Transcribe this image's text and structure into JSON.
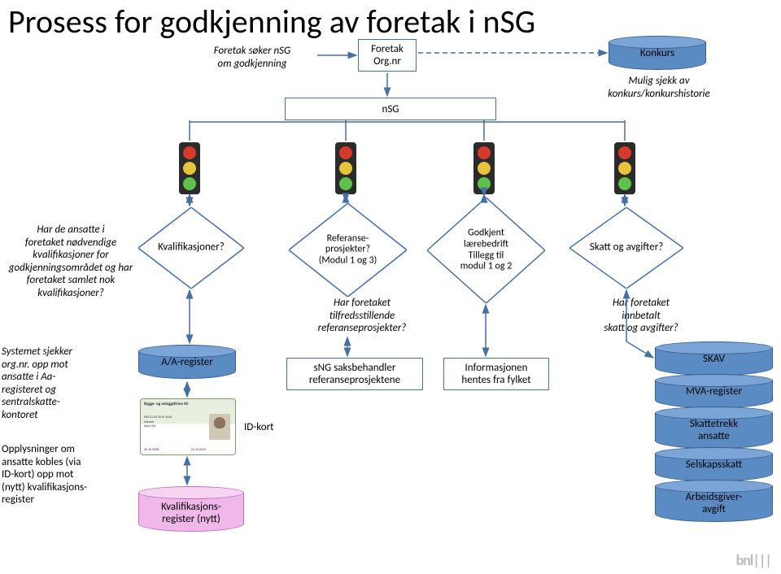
{
  "title": "Prosess for godkjenning av foretak i nSG",
  "top_labels": {
    "soker": "Foretak søker nSG\nom godkjenning",
    "mulig_sjekk": "Mulig sjekk av\nkonkurs/konkurshistorie"
  },
  "boxes": {
    "orgnr": "Foretak\nOrg.nr",
    "nsg": "nSG",
    "saksbehandler": "sNG saksbehandler\nreferanseprosjektene",
    "info_fylket": "Informasjonen\nhentes fra fylket",
    "idkort": "ID-kort"
  },
  "cylinders": {
    "konkurs": "Konkurs",
    "aa_register": "A/A-register",
    "kval_register": "Kvalifikasjons-\nregister (nytt)",
    "skav": "SKAV",
    "mva": "MVA-register",
    "skattetrekk": "Skattetrekk\nansatte",
    "selskapsskatt": "Selskapsskatt",
    "arbeidsgiver": "Arbeidsgiver-\navgift"
  },
  "diamonds": {
    "kvalifikasjoner": "Kvalifikasjoner?",
    "referanse": "Referanse-\nprosjekter?\n(Modul 1 og 3)",
    "godkjent": "Godkjent\nlærebedrift\nTillegg til\nmodul 1 og 2",
    "skatt": "Skatt og avgifter?"
  },
  "side_labels": {
    "har_ansatte": "Har de ansatte i\nforetaket nødvendige\nkvalifikasjoner for\ngodkjenningsområdet og har\nforetaket samlet nok\nkvalifikasjoner?",
    "systemet": "Systemet sjekker\norg.nr. opp mot\nansatte i Aa-\nregisteret og\nsentralskatte-\nkontoret",
    "opplysninger": "Opplysninger om\nansatte kobles (via\nID-kort) opp mot\n(nytt) kvalifikasjons-\nregister",
    "har_referanse": "Har foretaket\ntilfredsstillende\nreferanseprosjekter?",
    "har_innbetalt": "Har foretaket\ninnbetalt\nskatt og avgifter?"
  },
  "colors": {
    "border": "#466fa6",
    "cyl_fill": "#5b8bc3",
    "cyl_top": "#7aa5d6",
    "red": "#d63a2a",
    "yellow": "#e8c23a",
    "green": "#5ec24a",
    "dark": "#3a3a3a",
    "arrow": "#466fa6"
  }
}
